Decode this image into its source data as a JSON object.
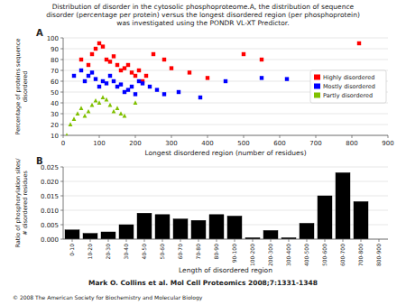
{
  "chart_data": [
    {
      "type": "scatter",
      "title": "Distribution of disorder in the cytosolic phosphoproteome.A, the distribution of sequence\ndisorder (percentage per protein) versus the longest disordered region (per phosphoprotein)\nwas investigated using the PONDR VL-XT Predictor.",
      "annotations": [
        "A"
      ],
      "x_label": "Longest disordered region (number of residues)",
      "y_label": "Percentage of proteins sequence\ndisordered",
      "xlim": [
        0,
        900
      ],
      "ylim": [
        10,
        100
      ],
      "xticks": [
        0,
        100,
        200,
        300,
        400,
        500,
        600,
        700,
        800,
        900
      ],
      "yticks": [
        10,
        20,
        30,
        40,
        50,
        60,
        70,
        80,
        90,
        100
      ],
      "grid": true,
      "legend": "center right",
      "series": [
        {
          "name": "Highly disordered",
          "color": "red",
          "marker": "square",
          "x": [
            50,
            70,
            80,
            90,
            100,
            110,
            120,
            130,
            140,
            150,
            160,
            170,
            180,
            190,
            200,
            210,
            220,
            230,
            250,
            280,
            300,
            350,
            400,
            500,
            550,
            820
          ],
          "values": [
            80,
            75,
            85,
            90,
            95,
            92,
            80,
            78,
            83,
            75,
            70,
            72,
            75,
            68,
            65,
            70,
            60,
            65,
            85,
            80,
            72,
            68,
            63,
            85,
            80,
            95
          ]
        },
        {
          "name": "Mostly disordered",
          "color": "blue",
          "marker": "square",
          "x": [
            30,
            50,
            60,
            70,
            80,
            90,
            100,
            110,
            120,
            130,
            140,
            150,
            160,
            170,
            180,
            190,
            200,
            210,
            220,
            240,
            260,
            280,
            320,
            380,
            450,
            550,
            620
          ],
          "values": [
            65,
            70,
            60,
            65,
            68,
            62,
            55,
            60,
            58,
            65,
            60,
            55,
            57,
            50,
            52,
            55,
            48,
            60,
            58,
            55,
            52,
            48,
            50,
            45,
            60,
            63,
            62
          ]
        },
        {
          "name": "Partly disordered",
          "color": "#80c000",
          "marker": "triangle",
          "x": [
            10,
            20,
            30,
            40,
            50,
            60,
            70,
            80,
            90,
            100,
            110,
            120,
            130,
            140,
            150,
            160,
            170,
            200
          ],
          "values": [
            10,
            20,
            25,
            30,
            35,
            28,
            32,
            38,
            42,
            40,
            45,
            43,
            38,
            32,
            35,
            30,
            28,
            40
          ]
        }
      ]
    },
    {
      "type": "bar",
      "annotations": [
        "B",
        "Mark O. Collins et al. Mol Cell Proteomics 2008;7:1331-1348",
        "© 2008 The American Society for Biochemistry and Molecular Biology"
      ],
      "x_label": "Length of disordered region",
      "y_label": "Ratio of phosphorylation sites/\n# disordered residues",
      "categories": [
        "0-10",
        "10-20",
        "20-30",
        "30-40",
        "40-50",
        "50-60",
        "60-70",
        "70-80",
        "80-90",
        "90-100",
        "100-200",
        "200-300",
        "300-400",
        "400-500",
        "500-600",
        "600-700",
        "700-800",
        "800-900"
      ],
      "values": [
        0.0032,
        0.002,
        0.0025,
        0.005,
        0.009,
        0.0085,
        0.007,
        0.0065,
        0.0085,
        0.008,
        0.0005,
        0.003,
        0.0005,
        0.0055,
        0.015,
        0.023,
        0.013,
        0.0
      ],
      "color": "black",
      "ylim": [
        0,
        0.025
      ],
      "yticks": [
        {
          "value": 0,
          "label": "0.000"
        },
        0.005,
        {
          "value": 0.01,
          "label": "0.010"
        },
        0.015,
        {
          "value": 0.02,
          "label": "0.020"
        },
        0.025
      ],
      "grid": true
    }
  ]
}
